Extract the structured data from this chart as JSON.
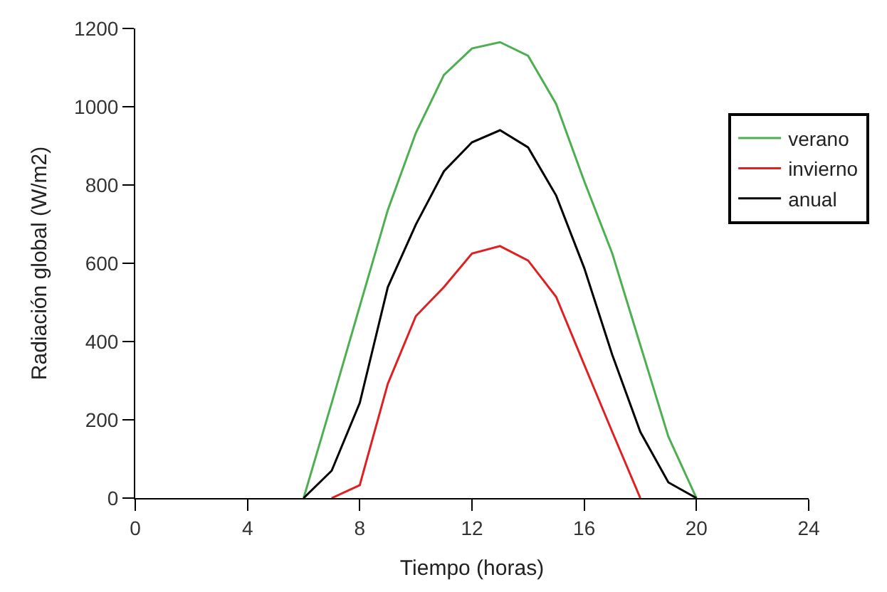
{
  "chart_data": {
    "type": "line",
    "xlabel": "Tiempo (horas)",
    "ylabel": "Radiación global (W/m2)",
    "x": [
      6,
      7,
      8,
      9,
      10,
      11,
      12,
      13,
      14,
      15,
      16,
      17,
      18,
      19,
      20
    ],
    "series": [
      {
        "name": "verano",
        "color": "#4caf50",
        "values": [
          0,
          243,
          490,
          736,
          933,
          1081,
          1149,
          1165,
          1130,
          1007,
          810,
          625,
          391,
          157,
          0
        ]
      },
      {
        "name": "invierno",
        "color": "#e02020",
        "x": [
          7,
          8,
          9,
          10,
          11,
          12,
          13,
          14,
          15,
          16,
          17,
          18
        ],
        "values": [
          0,
          33,
          292,
          465,
          539,
          625,
          644,
          607,
          514,
          341,
          169,
          0
        ]
      },
      {
        "name": "anual",
        "color": "#000000",
        "values": [
          0,
          70,
          243,
          539,
          699,
          835,
          909,
          940,
          896,
          773,
          588,
          366,
          169,
          40,
          0
        ]
      }
    ],
    "xlim": [
      0,
      24
    ],
    "xticks": [
      0,
      4,
      8,
      12,
      16,
      20,
      24
    ],
    "ylim": [
      0,
      1200
    ],
    "yticks": [
      0,
      200,
      400,
      600,
      800,
      1000,
      1200
    ],
    "legend": "top right",
    "marker": "none",
    "line_style": "solid"
  }
}
